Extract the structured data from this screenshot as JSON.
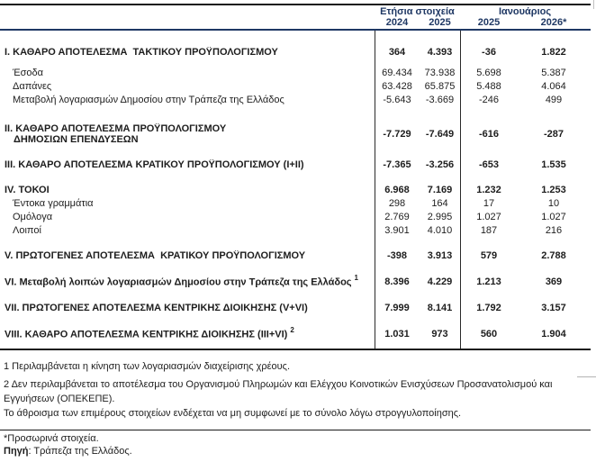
{
  "table": {
    "header": {
      "group_annual": "Ετήσια στοιχεία",
      "group_january": "Ιανουάριος",
      "years": [
        "2024",
        "2025",
        "2025",
        "2026*"
      ]
    },
    "sections": [
      {
        "rows": [
          {
            "bold": true,
            "label": "I. ΚΑΘΑΡΟ ΑΠΟΤΕΛΕΣΜΑ  ΤΑΚΤΙΚΟΥ ΠΡΟΫΠΟΛΟΓΙΣΜΟΥ",
            "values": [
              "364",
              "4.393",
              "-36",
              "1.822"
            ]
          }
        ]
      },
      {
        "rows": [
          {
            "bold": false,
            "indent": true,
            "label": "Έσοδα",
            "values": [
              "69.434",
              "73.938",
              "5.698",
              "5.387"
            ]
          },
          {
            "bold": false,
            "indent": true,
            "label": "Δαπάνες",
            "values": [
              "63.428",
              "65.875",
              "5.488",
              "4.064"
            ]
          },
          {
            "bold": false,
            "indent": true,
            "label": "Μεταβολή λογαριασμών Δημοσίου στην Τράπεζα της Ελλάδος",
            "values": [
              "-5.643",
              "-3.669",
              "-246",
              "499"
            ]
          }
        ]
      },
      {
        "rows": [
          {
            "bold": true,
            "label": "II. ΚΑΘΑΡΟ ΑΠΟΤΕΛΕΣΜΑ ΠΡΟΫΠΟΛΟΓΙΣΜΟΥ",
            "label2": "ΔΗΜΟΣΙΩΝ ΕΠΕΝΔΥΣΕΩΝ",
            "values": [
              "-7.729",
              "-7.649",
              "-616",
              "-287"
            ]
          }
        ]
      },
      {
        "rows": [
          {
            "bold": true,
            "label": "III. ΚΑΘΑΡΟ ΑΠΟΤΕΛΕΣΜΑ ΚΡΑΤΙΚΟΥ ΠΡΟΫΠΟΛΟΓΙΣΜΟΥ (I+II)",
            "values": [
              "-7.365",
              "-3.256",
              "-653",
              "1.535"
            ]
          }
        ]
      },
      {
        "rows": [
          {
            "bold": true,
            "label": "IV. ΤΟΚΟΙ",
            "values": [
              "6.968",
              "7.169",
              "1.232",
              "1.253"
            ]
          },
          {
            "bold": false,
            "indent": true,
            "label": "Έντοκα γραμμάτια",
            "values": [
              "298",
              "164",
              "17",
              "10"
            ]
          },
          {
            "bold": false,
            "indent": true,
            "label": "Ομόλογα",
            "values": [
              "2.769",
              "2.995",
              "1.027",
              "1.027"
            ]
          },
          {
            "bold": false,
            "indent": true,
            "label": "Λοιποί",
            "values": [
              "3.901",
              "4.010",
              "187",
              "216"
            ]
          }
        ]
      },
      {
        "rows": [
          {
            "bold": true,
            "label": "V. ΠΡΩΤΟΓΕΝΕΣ ΑΠΟΤΕΛΕΣΜΑ  ΚΡΑΤΙΚΟΥ ΠΡΟΫΠΟΛΟΓΙΣΜΟΥ",
            "values": [
              "-398",
              "3.913",
              "579",
              "2.788"
            ]
          }
        ]
      },
      {
        "rows": [
          {
            "bold": true,
            "label": "VI. Μεταβολή λοιπών λογαριασμών Δημοσίου στην Τράπεζα της Ελλάδος",
            "sup": "1",
            "values": [
              "8.396",
              "4.229",
              "1.213",
              "369"
            ]
          }
        ]
      },
      {
        "rows": [
          {
            "bold": true,
            "label": "VII. ΠΡΩΤΟΓΕΝΕΣ ΑΠΟΤΕΛΕΣΜΑ ΚΕΝΤΡΙΚΗΣ ΔΙΟΙΚΗΣΗΣ (V+VI)",
            "values": [
              "7.999",
              "8.141",
              "1.792",
              "3.157"
            ]
          }
        ]
      },
      {
        "rows": [
          {
            "bold": true,
            "label": "VIII. ΚΑΘΑΡΟ ΑΠΟΤΕΛΕΣΜΑ ΚΕΝΤΡΙΚΗΣ ΔΙΟΙΚΗΣΗΣ (III+VI)",
            "sup": "2",
            "values": [
              "1.031",
              "973",
              "560",
              "1.904"
            ]
          }
        ]
      }
    ],
    "footnotes": {
      "footnote1": "1 Περιλαμβάνεται η κίνηση των λογαριασμών διαχείρισης χρέους.",
      "footnote2": "2 Δεν περιλαμβάνεται το αποτέλεσμα του Οργανισμού Πληρωμών και Ελέγχου Κοινοτικών Ενισχύσεων Προσανατολισμού και Εγγυήσεων (ΟΠΕΚΕΠΕ).",
      "rounding_note": "Το άθροισμα των επιμέρους στοιχείων ενδέχεται να μη συμφωνεί με το σύνολο λόγω στρογγυλοποίησης.",
      "provisional_note": "*Προσωρινά στοιχεία.",
      "source_label": "Πηγή",
      "source_text": ": Τράπεζα της Ελλάδος."
    },
    "colors": {
      "header_text": "#1f3864",
      "body_text": "#1d1d1d",
      "rule_line": "#1a1a1a",
      "artifact_gray": "#b3b3b3"
    }
  }
}
